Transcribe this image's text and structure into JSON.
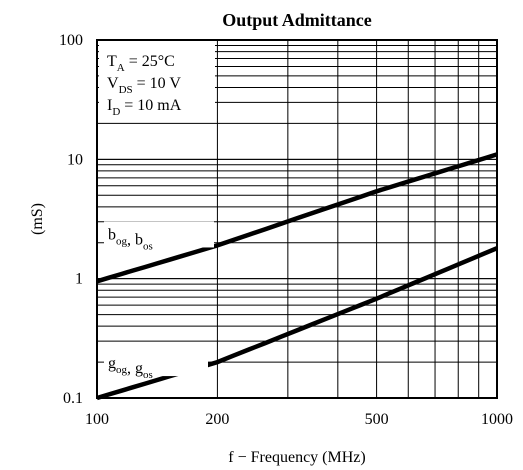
{
  "chart_data": {
    "type": "line",
    "title": "Output Admittance",
    "xlabel": "f − Frequency (MHz)",
    "ylabel": "(mS)",
    "xscale": "log",
    "yscale": "log",
    "xlim": [
      100,
      1000
    ],
    "ylim": [
      0.1,
      100
    ],
    "grid": true,
    "x_tick_labels": [
      {
        "value": 100,
        "label": "100"
      },
      {
        "value": 200,
        "label": "200"
      },
      {
        "value": 500,
        "label": "500"
      },
      {
        "value": 1000,
        "label": "1000"
      }
    ],
    "y_tick_labels": [
      {
        "value": 100,
        "label": "100"
      },
      {
        "value": 10,
        "label": "10"
      },
      {
        "value": 1,
        "label": "1"
      },
      {
        "value": 0.1,
        "label": "0.1"
      }
    ],
    "conditions": [
      {
        "sym": "T",
        "sub": "A",
        "rest": " = 25°C"
      },
      {
        "sym": "V",
        "sub": "DS",
        "rest": " = 10 V"
      },
      {
        "sym": "I",
        "sub": "D",
        "rest": " = 10 mA"
      }
    ],
    "series": [
      {
        "label_parts": [
          {
            "sym": "b",
            "sub": "og"
          },
          {
            "sym": ", b",
            "sub": "os"
          }
        ],
        "x": [
          100,
          200,
          500,
          1000
        ],
        "y": [
          0.95,
          1.9,
          5.4,
          11
        ]
      },
      {
        "label_parts": [
          {
            "sym": "g",
            "sub": "og"
          },
          {
            "sym": ", g",
            "sub": "os"
          }
        ],
        "x": [
          100,
          200,
          500,
          1000
        ],
        "y": [
          0.1,
          0.2,
          0.68,
          1.8
        ]
      }
    ]
  }
}
